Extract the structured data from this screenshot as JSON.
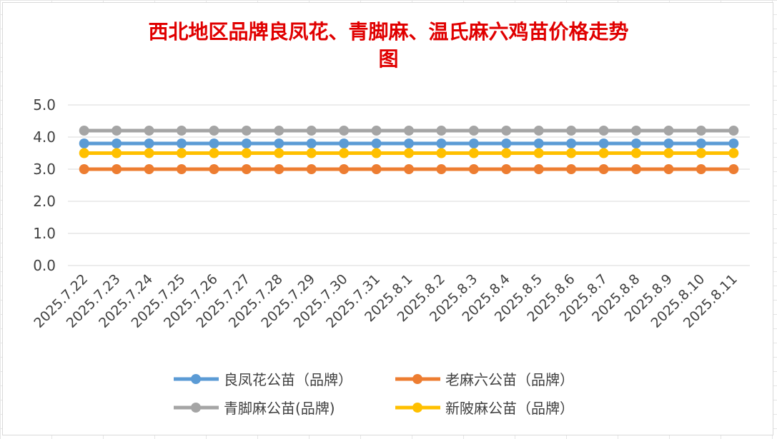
{
  "chart_data": {
    "type": "line",
    "title": "西北地区品牌良凤花、青脚麻、温氏麻六鸡苗价格走势图",
    "title_lines": [
      "西北地区品牌良凤花、青脚麻、温氏麻六鸡苗价格走势",
      "图"
    ],
    "x": [
      "2025.7.22",
      "2025.7.23",
      "2025.7.24",
      "2025.7.25",
      "2025.7.26",
      "2025.7.27",
      "2025.7.28",
      "2025.7.29",
      "2025.7.30",
      "2025.7.31",
      "2025.8.1",
      "2025.8.2",
      "2025.8.3",
      "2025.8.4",
      "2025.8.5",
      "2025.8.6",
      "2025.8.7",
      "2025.8.8",
      "2025.8.9",
      "2025.8.10",
      "2025.8.11"
    ],
    "y_ticks": [
      "0.0",
      "1.0",
      "2.0",
      "3.0",
      "4.0",
      "5.0"
    ],
    "ylim": [
      0,
      5
    ],
    "grid": true,
    "legend_position": "bottom",
    "series": [
      {
        "name": "良凤花公苗（品牌）",
        "color": "#5b9bd5",
        "values": [
          3.8,
          3.8,
          3.8,
          3.8,
          3.8,
          3.8,
          3.8,
          3.8,
          3.8,
          3.8,
          3.8,
          3.8,
          3.8,
          3.8,
          3.8,
          3.8,
          3.8,
          3.8,
          3.8,
          3.8,
          3.8
        ]
      },
      {
        "name": "老麻六公苗（品牌）",
        "color": "#ed7d31",
        "values": [
          3.0,
          3.0,
          3.0,
          3.0,
          3.0,
          3.0,
          3.0,
          3.0,
          3.0,
          3.0,
          3.0,
          3.0,
          3.0,
          3.0,
          3.0,
          3.0,
          3.0,
          3.0,
          3.0,
          3.0,
          3.0
        ]
      },
      {
        "name": "青脚麻公苗(品牌)",
        "color": "#a5a5a5",
        "values": [
          4.2,
          4.2,
          4.2,
          4.2,
          4.2,
          4.2,
          4.2,
          4.2,
          4.2,
          4.2,
          4.2,
          4.2,
          4.2,
          4.2,
          4.2,
          4.2,
          4.2,
          4.2,
          4.2,
          4.2,
          4.2
        ]
      },
      {
        "name": "新陂麻公苗（品牌）",
        "color": "#ffc000",
        "values": [
          3.5,
          3.5,
          3.5,
          3.5,
          3.5,
          3.5,
          3.5,
          3.5,
          3.5,
          3.5,
          3.5,
          3.5,
          3.5,
          3.5,
          3.5,
          3.5,
          3.5,
          3.5,
          3.5,
          3.5,
          3.5
        ]
      }
    ]
  }
}
